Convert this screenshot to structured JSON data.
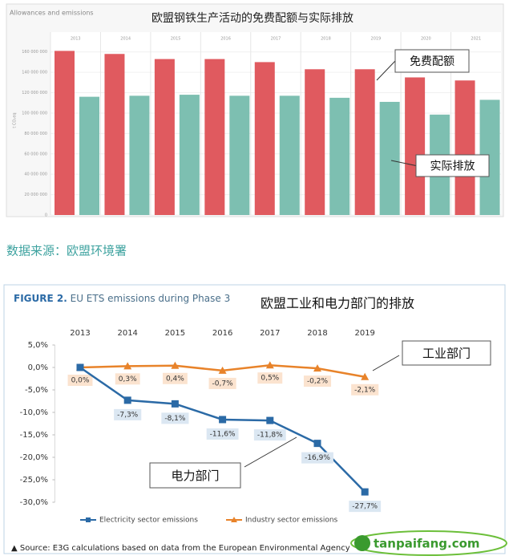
{
  "chart_data": [
    {
      "type": "bar",
      "title": "Allowances and emissions",
      "subtitle": "欧盟钢铁生产活动的免费配额与实际排放",
      "y_label": "t CO₂eq",
      "categories": [
        "2013",
        "2014",
        "2015",
        "2016",
        "2017",
        "2018",
        "2019",
        "2020",
        "2021"
      ],
      "series": [
        {
          "name": "免费配额",
          "color": "#e05a5f",
          "values": [
            161000000,
            158000000,
            153000000,
            153000000,
            150000000,
            143000000,
            143000000,
            135000000,
            132000000
          ]
        },
        {
          "name": "实际排放",
          "color": "#7dbfb1",
          "values": [
            116000000,
            117000000,
            118000000,
            117000000,
            117000000,
            115000000,
            111000000,
            98500000,
            113000000
          ]
        }
      ],
      "ylim": [
        0,
        170000000
      ],
      "yticks": [
        0,
        {
          "value": 20000000,
          "label": "20 000 000"
        },
        {
          "value": 40000000,
          "label": "40 000 000"
        },
        {
          "value": 60000000,
          "label": "60 000 000"
        },
        {
          "value": 80000000,
          "label": "80 000 000"
        },
        {
          "value": 100000000,
          "label": "100 000 000"
        },
        {
          "value": 120000000,
          "label": "120 000 000"
        },
        {
          "value": 140000000,
          "label": "140 000 000"
        },
        {
          "value": 160000000,
          "label": "160 000 000"
        }
      ],
      "grid": true,
      "source": "数据来源：欧盟环境署"
    },
    {
      "type": "line",
      "figure_label": "FIGURE 2.",
      "title": "EU ETS emissions during Phase 3",
      "subtitle": "欧盟工业和电力部门的排放",
      "categories": [
        "2013",
        "2014",
        "2015",
        "2016",
        "2017",
        "2018",
        "2019"
      ],
      "series": [
        {
          "name": "Electricity sector emissions",
          "color": "#2b6aa6",
          "values": [
            0.0,
            -7.3,
            -8.1,
            -11.6,
            -11.8,
            -16.9,
            -27.7
          ],
          "value_labels": [
            null,
            "-7,3%",
            "-8,1%",
            "-11,6%",
            "-11,8%",
            "-16,9%",
            "-27,7%"
          ]
        },
        {
          "name": "Industry sector emissions",
          "color": "#e8832a",
          "values": [
            0.0,
            0.3,
            0.4,
            -0.7,
            0.5,
            -0.2,
            -2.1
          ],
          "value_labels": [
            "0,0%",
            "0,3%",
            "0,4%",
            "-0,7%",
            "0,5%",
            "-0,2%",
            "-2,1%"
          ]
        }
      ],
      "annotations": [
        "工业部门",
        "电力部门"
      ],
      "ylim": [
        -30,
        5
      ],
      "yticks": [
        {
          "value": 5,
          "label": "5,0%"
        },
        {
          "value": 0,
          "label": "0,0%"
        },
        {
          "value": -5,
          "label": "-5,0%"
        },
        {
          "value": -10,
          "label": "-10,0%"
        },
        {
          "value": -15,
          "label": "-15,0%"
        },
        {
          "value": -20,
          "label": "-20,0%"
        },
        {
          "value": -25,
          "label": "-25,0%"
        },
        {
          "value": -30,
          "label": "-30,0%"
        }
      ],
      "source": "▲ Source: E3G calculations based on data from the European Environmental Agency"
    }
  ],
  "watermark": "tanpaifang.com"
}
